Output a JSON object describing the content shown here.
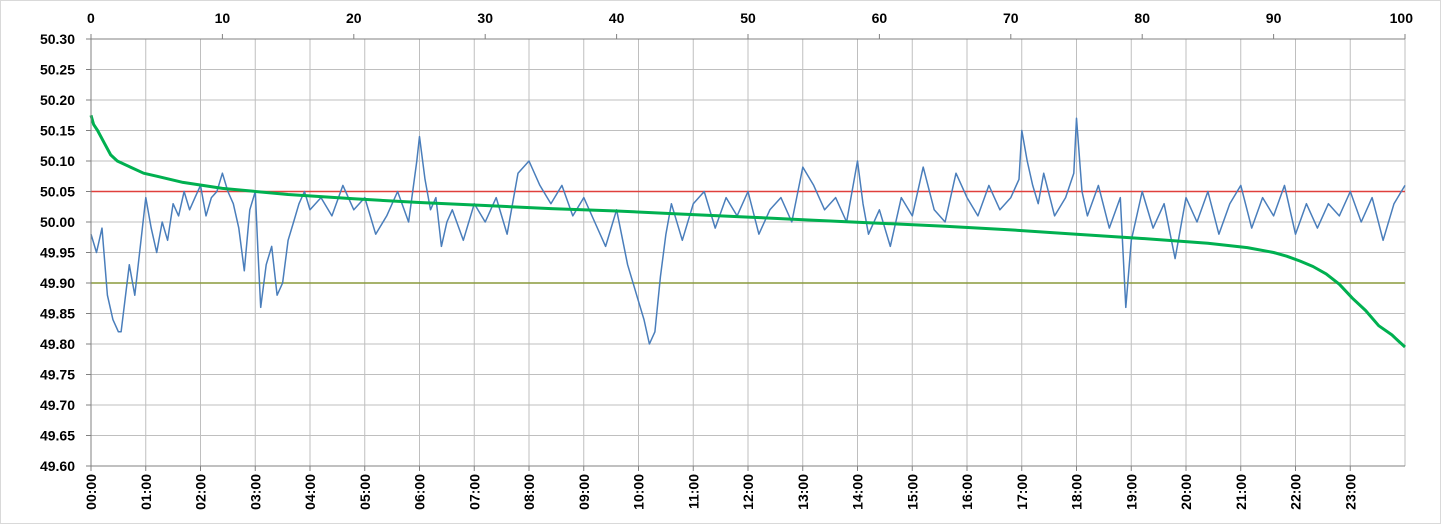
{
  "chart_data": {
    "type": "line",
    "title": "",
    "xlabel": "",
    "ylabel": "",
    "grid": true,
    "legend": "none",
    "y_axis": {
      "range": [
        49.6,
        50.3
      ],
      "step": 0.05,
      "tick_labels": [
        "50.30",
        "50.25",
        "50.20",
        "50.15",
        "50.10",
        "50.05",
        "50.00",
        "49.95",
        "49.90",
        "49.85",
        "49.80",
        "49.75",
        "49.70",
        "49.65",
        "49.60"
      ]
    },
    "x_bottom_axis": {
      "unit": "hours",
      "range": [
        0,
        24
      ],
      "tick_labels": [
        "00:00",
        "01:00",
        "02:00",
        "03:00",
        "04:00",
        "05:00",
        "06:00",
        "07:00",
        "08:00",
        "09:00",
        "10:00",
        "11:00",
        "12:00",
        "13:00",
        "14:00",
        "15:00",
        "16:00",
        "17:00",
        "18:00",
        "19:00",
        "20:00",
        "21:00",
        "22:00",
        "23:00"
      ]
    },
    "x_top_axis": {
      "unit": "percent",
      "range": [
        0,
        100
      ],
      "tick_labels": [
        "0",
        "10",
        "20",
        "30",
        "40",
        "50",
        "60",
        "70",
        "80",
        "90",
        "100"
      ]
    },
    "reference_lines": [
      {
        "y": 50.05,
        "color": "#e0403c"
      },
      {
        "y": 49.9,
        "color": "#8a9a3c"
      }
    ],
    "series": [
      {
        "color": "#4a7ebb",
        "x_axis": "bottom",
        "x": [
          0,
          0.1,
          0.2,
          0.3,
          0.4,
          0.5,
          0.55,
          0.7,
          0.8,
          0.9,
          1.0,
          1.1,
          1.2,
          1.3,
          1.4,
          1.5,
          1.6,
          1.7,
          1.8,
          1.9,
          2.0,
          2.1,
          2.2,
          2.3,
          2.4,
          2.5,
          2.6,
          2.7,
          2.8,
          2.9,
          3.0,
          3.05,
          3.1,
          3.2,
          3.3,
          3.4,
          3.5,
          3.6,
          3.7,
          3.8,
          3.9,
          4.0,
          4.2,
          4.4,
          4.6,
          4.8,
          5.0,
          5.2,
          5.4,
          5.6,
          5.8,
          5.95,
          6.0,
          6.1,
          6.2,
          6.3,
          6.4,
          6.5,
          6.6,
          6.8,
          7.0,
          7.2,
          7.4,
          7.6,
          7.8,
          8.0,
          8.2,
          8.4,
          8.6,
          8.8,
          9.0,
          9.2,
          9.4,
          9.6,
          9.8,
          10.0,
          10.1,
          10.2,
          10.3,
          10.4,
          10.5,
          10.6,
          10.8,
          11.0,
          11.2,
          11.4,
          11.6,
          11.8,
          12.0,
          12.2,
          12.4,
          12.6,
          12.8,
          13.0,
          13.2,
          13.4,
          13.6,
          13.8,
          14.0,
          14.1,
          14.2,
          14.4,
          14.6,
          14.8,
          15.0,
          15.2,
          15.4,
          15.6,
          15.8,
          16.0,
          16.2,
          16.4,
          16.6,
          16.8,
          16.95,
          17.0,
          17.1,
          17.2,
          17.3,
          17.4,
          17.6,
          17.8,
          17.95,
          18.0,
          18.1,
          18.2,
          18.4,
          18.6,
          18.8,
          18.9,
          19.0,
          19.2,
          19.4,
          19.6,
          19.8,
          20.0,
          20.2,
          20.4,
          20.6,
          20.8,
          21.0,
          21.2,
          21.4,
          21.6,
          21.8,
          22.0,
          22.2,
          22.4,
          22.6,
          22.8,
          23.0,
          23.2,
          23.4,
          23.6,
          23.8,
          24.0
        ],
        "y": [
          49.98,
          49.95,
          49.99,
          49.88,
          49.84,
          49.82,
          49.82,
          49.93,
          49.88,
          49.96,
          50.04,
          49.99,
          49.95,
          50.0,
          49.97,
          50.03,
          50.01,
          50.05,
          50.02,
          50.04,
          50.06,
          50.01,
          50.04,
          50.05,
          50.08,
          50.05,
          50.03,
          49.99,
          49.92,
          50.02,
          50.05,
          49.95,
          49.86,
          49.93,
          49.96,
          49.88,
          49.9,
          49.97,
          50.0,
          50.03,
          50.05,
          50.02,
          50.04,
          50.01,
          50.06,
          50.02,
          50.04,
          49.98,
          50.01,
          50.05,
          50.0,
          50.1,
          50.14,
          50.07,
          50.02,
          50.04,
          49.96,
          50.0,
          50.02,
          49.97,
          50.03,
          50.0,
          50.04,
          49.98,
          50.08,
          50.1,
          50.06,
          50.03,
          50.06,
          50.01,
          50.04,
          50.0,
          49.96,
          50.02,
          49.93,
          49.87,
          49.84,
          49.8,
          49.82,
          49.91,
          49.98,
          50.03,
          49.97,
          50.03,
          50.05,
          49.99,
          50.04,
          50.01,
          50.05,
          49.98,
          50.02,
          50.04,
          50.0,
          50.09,
          50.06,
          50.02,
          50.04,
          50.0,
          50.1,
          50.03,
          49.98,
          50.02,
          49.96,
          50.04,
          50.01,
          50.09,
          50.02,
          50.0,
          50.08,
          50.04,
          50.01,
          50.06,
          50.02,
          50.04,
          50.07,
          50.15,
          50.1,
          50.06,
          50.03,
          50.08,
          50.01,
          50.04,
          50.08,
          50.17,
          50.05,
          50.01,
          50.06,
          49.99,
          50.04,
          49.86,
          49.97,
          50.05,
          49.99,
          50.03,
          49.94,
          50.04,
          50.0,
          50.05,
          49.98,
          50.03,
          50.06,
          49.99,
          50.04,
          50.01,
          50.06,
          49.98,
          50.03,
          49.99,
          50.03,
          50.01,
          50.05,
          50.0,
          50.04,
          49.97,
          50.03,
          50.06
        ]
      },
      {
        "color": "#00b050",
        "x_axis": "top",
        "x": [
          0,
          0.2,
          0.5,
          1,
          1.5,
          2,
          3,
          4,
          5,
          7,
          10,
          15,
          20,
          25,
          30,
          35,
          40,
          45,
          50,
          55,
          60,
          65,
          70,
          75,
          80,
          85,
          88,
          90,
          91,
          92,
          93,
          94,
          95,
          96,
          97,
          98,
          99,
          99.5,
          100
        ],
        "y": [
          50.175,
          50.16,
          50.15,
          50.13,
          50.11,
          50.1,
          50.09,
          50.08,
          50.075,
          50.065,
          50.055,
          50.045,
          50.038,
          50.032,
          50.027,
          50.022,
          50.018,
          50.013,
          50.008,
          50.003,
          49.998,
          49.993,
          49.987,
          49.98,
          49.973,
          49.965,
          49.958,
          49.95,
          49.944,
          49.936,
          49.927,
          49.915,
          49.898,
          49.875,
          49.855,
          49.83,
          49.815,
          49.805,
          49.795
        ]
      }
    ]
  }
}
